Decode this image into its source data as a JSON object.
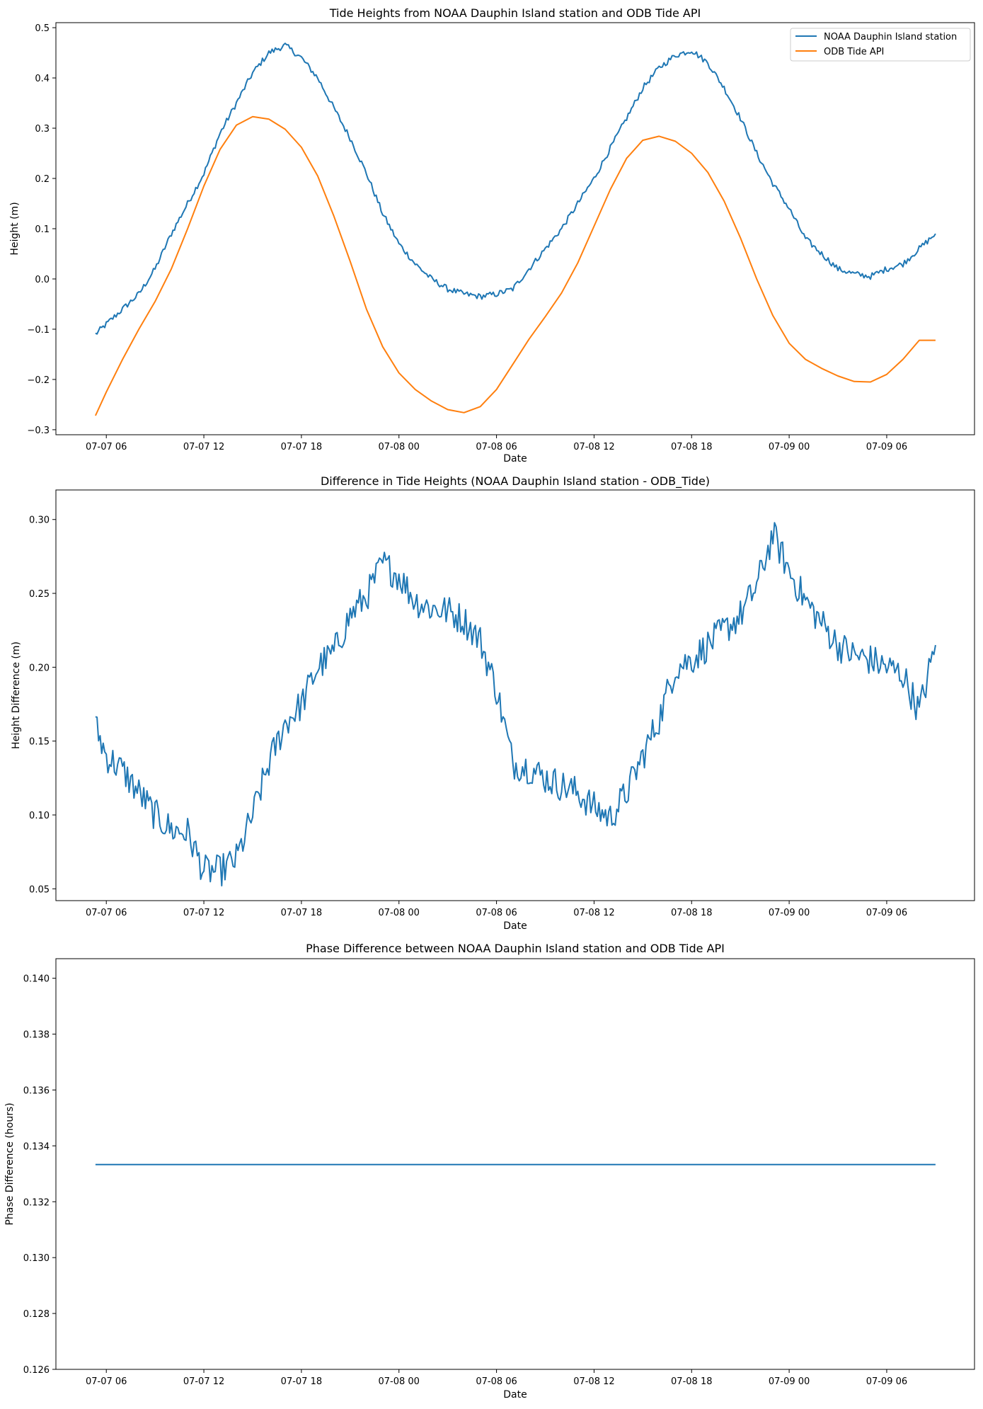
{
  "chart_data": [
    {
      "type": "line",
      "title": "Tide Heights from NOAA Dauphin Island station and ODB Tide API",
      "xlabel": "Date",
      "ylabel": "Height (m)",
      "xticks": [
        "07-07 06",
        "07-07 12",
        "07-07 18",
        "07-08 00",
        "07-08 06",
        "07-08 12",
        "07-08 18",
        "07-09 00",
        "07-09 06"
      ],
      "yticks": [
        "−0.3",
        "−0.2",
        "−0.1",
        "0.0",
        "0.1",
        "0.2",
        "0.3",
        "0.4",
        "0.5"
      ],
      "ylim": [
        -0.31,
        0.51
      ],
      "legend_position": "top-right",
      "series": [
        {
          "name": "NOAA Dauphin Island station",
          "color": "#1f77b4",
          "points": [
            [
              "2024-07-07 05:20",
              -0.11
            ],
            [
              "2024-07-07 06:00",
              -0.09
            ],
            [
              "2024-07-07 07:00",
              -0.06
            ],
            [
              "2024-07-07 08:00",
              -0.03
            ],
            [
              "2024-07-07 09:00",
              0.02
            ],
            [
              "2024-07-07 10:00",
              0.09
            ],
            [
              "2024-07-07 11:00",
              0.15
            ],
            [
              "2024-07-07 12:00",
              0.21
            ],
            [
              "2024-07-07 13:00",
              0.29
            ],
            [
              "2024-07-07 14:00",
              0.35
            ],
            [
              "2024-07-07 15:00",
              0.41
            ],
            [
              "2024-07-07 16:00",
              0.45
            ],
            [
              "2024-07-07 17:00",
              0.465
            ],
            [
              "2024-07-07 18:00",
              0.44
            ],
            [
              "2024-07-07 19:00",
              0.4
            ],
            [
              "2024-07-07 20:00",
              0.34
            ],
            [
              "2024-07-07 21:00",
              0.28
            ],
            [
              "2024-07-07 22:00",
              0.21
            ],
            [
              "2024-07-07 23:00",
              0.13
            ],
            [
              "2024-07-08 00:00",
              0.07
            ],
            [
              "2024-07-08 01:00",
              0.03
            ],
            [
              "2024-07-08 02:00",
              0.0
            ],
            [
              "2024-07-08 03:00",
              -0.02
            ],
            [
              "2024-07-08 04:00",
              -0.03
            ],
            [
              "2024-07-08 05:00",
              -0.035
            ],
            [
              "2024-07-08 06:00",
              -0.03
            ],
            [
              "2024-07-08 07:00",
              -0.02
            ],
            [
              "2024-07-08 08:00",
              0.02
            ],
            [
              "2024-07-08 09:00",
              0.06
            ],
            [
              "2024-07-08 10:00",
              0.1
            ],
            [
              "2024-07-08 11:00",
              0.15
            ],
            [
              "2024-07-08 12:00",
              0.2
            ],
            [
              "2024-07-08 13:00",
              0.26
            ],
            [
              "2024-07-08 14:00",
              0.32
            ],
            [
              "2024-07-08 15:00",
              0.38
            ],
            [
              "2024-07-08 16:00",
              0.42
            ],
            [
              "2024-07-08 17:00",
              0.445
            ],
            [
              "2024-07-08 18:00",
              0.455
            ],
            [
              "2024-07-08 19:00",
              0.43
            ],
            [
              "2024-07-08 20:00",
              0.38
            ],
            [
              "2024-07-08 21:00",
              0.32
            ],
            [
              "2024-07-08 22:00",
              0.25
            ],
            [
              "2024-07-08 23:00",
              0.19
            ],
            [
              "2024-07-09 00:00",
              0.14
            ],
            [
              "2024-07-09 01:00",
              0.08
            ],
            [
              "2024-07-09 02:00",
              0.05
            ],
            [
              "2024-07-09 03:00",
              0.02
            ],
            [
              "2024-07-09 04:00",
              0.01
            ],
            [
              "2024-07-09 05:00",
              0.005
            ],
            [
              "2024-07-09 06:00",
              0.02
            ],
            [
              "2024-07-09 07:00",
              0.03
            ],
            [
              "2024-07-09 08:00",
              0.06
            ],
            [
              "2024-07-09 09:00",
              0.09
            ]
          ]
        },
        {
          "name": "ODB Tide API",
          "color": "#ff7f0e",
          "points": [
            [
              "2024-07-07 05:20",
              -0.272
            ],
            [
              "2024-07-07 06:00",
              -0.225
            ],
            [
              "2024-07-07 07:00",
              -0.16
            ],
            [
              "2024-07-07 08:00",
              -0.1
            ],
            [
              "2024-07-07 09:00",
              -0.045
            ],
            [
              "2024-07-07 10:00",
              0.02
            ],
            [
              "2024-07-07 11:00",
              0.1
            ],
            [
              "2024-07-07 12:00",
              0.185
            ],
            [
              "2024-07-07 13:00",
              0.258
            ],
            [
              "2024-07-07 14:00",
              0.306
            ],
            [
              "2024-07-07 15:00",
              0.323
            ],
            [
              "2024-07-07 16:00",
              0.318
            ],
            [
              "2024-07-07 17:00",
              0.298
            ],
            [
              "2024-07-07 18:00",
              0.262
            ],
            [
              "2024-07-07 19:00",
              0.205
            ],
            [
              "2024-07-07 20:00",
              0.125
            ],
            [
              "2024-07-07 21:00",
              0.035
            ],
            [
              "2024-07-07 22:00",
              -0.06
            ],
            [
              "2024-07-07 23:00",
              -0.135
            ],
            [
              "2024-07-08 00:00",
              -0.187
            ],
            [
              "2024-07-08 01:00",
              -0.22
            ],
            [
              "2024-07-08 02:00",
              -0.243
            ],
            [
              "2024-07-08 03:00",
              -0.26
            ],
            [
              "2024-07-08 04:00",
              -0.266
            ],
            [
              "2024-07-08 05:00",
              -0.254
            ],
            [
              "2024-07-08 06:00",
              -0.22
            ],
            [
              "2024-07-08 07:00",
              -0.17
            ],
            [
              "2024-07-08 08:00",
              -0.12
            ],
            [
              "2024-07-08 09:00",
              -0.075
            ],
            [
              "2024-07-08 10:00",
              -0.028
            ],
            [
              "2024-07-08 11:00",
              0.032
            ],
            [
              "2024-07-08 12:00",
              0.105
            ],
            [
              "2024-07-08 13:00",
              0.178
            ],
            [
              "2024-07-08 14:00",
              0.24
            ],
            [
              "2024-07-08 15:00",
              0.276
            ],
            [
              "2024-07-08 16:00",
              0.284
            ],
            [
              "2024-07-08 17:00",
              0.274
            ],
            [
              "2024-07-08 18:00",
              0.25
            ],
            [
              "2024-07-08 19:00",
              0.212
            ],
            [
              "2024-07-08 20:00",
              0.155
            ],
            [
              "2024-07-08 21:00",
              0.082
            ],
            [
              "2024-07-08 22:00",
              0.0
            ],
            [
              "2024-07-08 23:00",
              -0.073
            ],
            [
              "2024-07-09 00:00",
              -0.128
            ],
            [
              "2024-07-09 01:00",
              -0.16
            ],
            [
              "2024-07-09 02:00",
              -0.178
            ],
            [
              "2024-07-09 03:00",
              -0.193
            ],
            [
              "2024-07-09 04:00",
              -0.204
            ],
            [
              "2024-07-09 05:00",
              -0.205
            ],
            [
              "2024-07-09 06:00",
              -0.19
            ],
            [
              "2024-07-09 07:00",
              -0.16
            ],
            [
              "2024-07-09 08:00",
              -0.122
            ],
            [
              "2024-07-09 09:00",
              -0.122
            ]
          ]
        }
      ]
    },
    {
      "type": "line",
      "title": "Difference in Tide Heights (NOAA Dauphin Island station - ODB_Tide)",
      "xlabel": "Date",
      "ylabel": "Height Difference (m)",
      "xticks": [
        "07-07 06",
        "07-07 12",
        "07-07 18",
        "07-08 00",
        "07-08 06",
        "07-08 12",
        "07-08 18",
        "07-09 00",
        "07-09 06"
      ],
      "yticks": [
        "0.05",
        "0.10",
        "0.15",
        "0.20",
        "0.25",
        "0.30"
      ],
      "ylim": [
        0.042,
        0.32
      ],
      "series": [
        {
          "color": "#1f77b4",
          "points": [
            [
              "2024-07-07 05:20",
              0.16
            ],
            [
              "2024-07-07 06:00",
              0.14
            ],
            [
              "2024-07-07 07:00",
              0.13
            ],
            [
              "2024-07-07 08:00",
              0.115
            ],
            [
              "2024-07-07 09:00",
              0.1
            ],
            [
              "2024-07-07 10:00",
              0.09
            ],
            [
              "2024-07-07 11:00",
              0.088
            ],
            [
              "2024-07-07 12:00",
              0.062
            ],
            [
              "2024-07-07 13:00",
              0.062
            ],
            [
              "2024-07-07 14:00",
              0.07
            ],
            [
              "2024-07-07 15:00",
              0.1
            ],
            [
              "2024-07-07 16:00",
              0.135
            ],
            [
              "2024-07-07 17:00",
              0.162
            ],
            [
              "2024-07-07 18:00",
              0.175
            ],
            [
              "2024-07-07 19:00",
              0.2
            ],
            [
              "2024-07-07 20:00",
              0.21
            ],
            [
              "2024-07-07 21:00",
              0.235
            ],
            [
              "2024-07-07 22:00",
              0.248
            ],
            [
              "2024-07-07 23:00",
              0.27
            ],
            [
              "2024-07-08 00:00",
              0.262
            ],
            [
              "2024-07-08 01:00",
              0.245
            ],
            [
              "2024-07-08 02:00",
              0.24
            ],
            [
              "2024-07-08 03:00",
              0.238
            ],
            [
              "2024-07-08 04:00",
              0.232
            ],
            [
              "2024-07-08 05:00",
              0.218
            ],
            [
              "2024-07-08 06:00",
              0.185
            ],
            [
              "2024-07-08 07:00",
              0.135
            ],
            [
              "2024-07-08 08:00",
              0.132
            ],
            [
              "2024-07-08 09:00",
              0.125
            ],
            [
              "2024-07-08 10:00",
              0.12
            ],
            [
              "2024-07-08 11:00",
              0.115
            ],
            [
              "2024-07-08 12:00",
              0.105
            ],
            [
              "2024-07-08 13:00",
              0.098
            ],
            [
              "2024-07-08 14:00",
              0.115
            ],
            [
              "2024-07-08 15:00",
              0.14
            ],
            [
              "2024-07-08 16:00",
              0.165
            ],
            [
              "2024-07-08 17:00",
              0.2
            ],
            [
              "2024-07-08 18:00",
              0.205
            ],
            [
              "2024-07-08 19:00",
              0.215
            ],
            [
              "2024-07-08 20:00",
              0.225
            ],
            [
              "2024-07-08 21:00",
              0.235
            ],
            [
              "2024-07-08 22:00",
              0.255
            ],
            [
              "2024-07-08 23:00",
              0.29
            ],
            [
              "2024-07-09 00:00",
              0.265
            ],
            [
              "2024-07-09 01:00",
              0.245
            ],
            [
              "2024-07-09 02:00",
              0.23
            ],
            [
              "2024-07-09 03:00",
              0.215
            ],
            [
              "2024-07-09 04:00",
              0.208
            ],
            [
              "2024-07-09 05:00",
              0.205
            ],
            [
              "2024-07-09 06:00",
              0.2
            ],
            [
              "2024-07-09 07:00",
              0.195
            ],
            [
              "2024-07-09 08:00",
              0.17
            ],
            [
              "2024-07-09 09:00",
              0.215
            ]
          ]
        }
      ]
    },
    {
      "type": "line",
      "title": "Phase Difference between NOAA Dauphin Island station and ODB Tide API",
      "xlabel": "Date",
      "ylabel": "Phase Difference (hours)",
      "xticks": [
        "07-07 06",
        "07-07 12",
        "07-07 18",
        "07-08 00",
        "07-08 06",
        "07-08 12",
        "07-08 18",
        "07-09 00",
        "07-09 06"
      ],
      "yticks": [
        "0.126",
        "0.128",
        "0.130",
        "0.132",
        "0.134",
        "0.136",
        "0.138",
        "0.140"
      ],
      "ylim": [
        0.126,
        0.1407
      ],
      "series": [
        {
          "color": "#1f77b4",
          "points": [
            [
              "2024-07-07 05:20",
              0.13333
            ],
            [
              "2024-07-09 09:00",
              0.13333
            ]
          ]
        }
      ]
    }
  ]
}
